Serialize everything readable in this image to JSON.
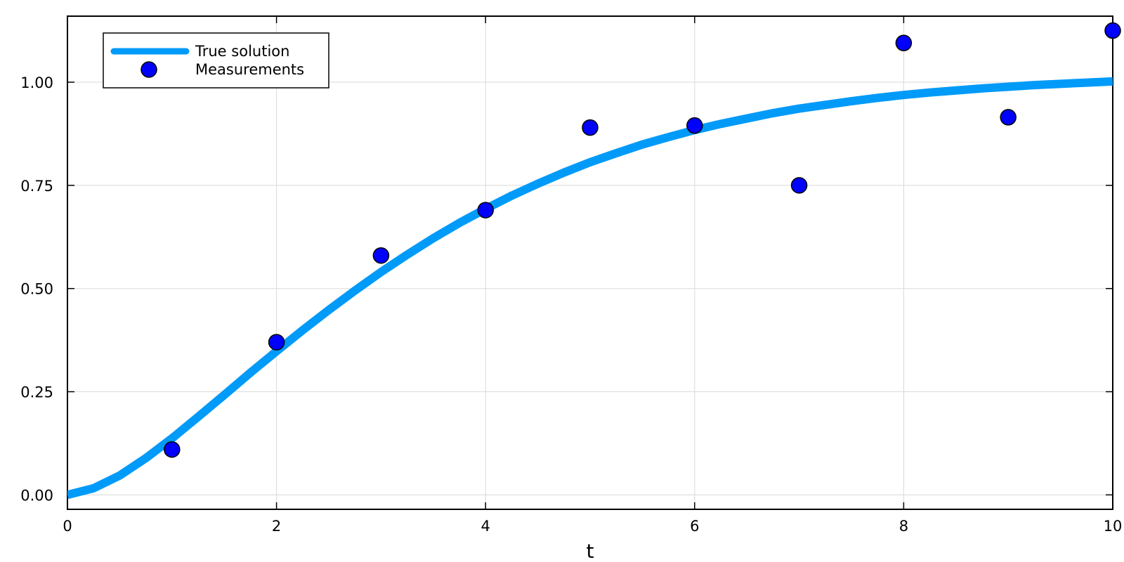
{
  "chart_data": {
    "type": "line",
    "title": "",
    "xlabel": "t",
    "ylabel": "",
    "xlim": [
      0,
      10
    ],
    "ylim": [
      -0.035,
      1.16
    ],
    "x_ticks": [
      0,
      2,
      4,
      6,
      8,
      10
    ],
    "x_tick_labels": [
      "0",
      "2",
      "4",
      "6",
      "8",
      "10"
    ],
    "y_ticks": [
      0,
      0.25,
      0.5,
      0.75,
      1.0
    ],
    "y_tick_labels": [
      "0.00",
      "0.25",
      "0.50",
      "0.75",
      "1.00"
    ],
    "grid": true,
    "legend": {
      "placement": "top-left",
      "entries": [
        "True solution",
        "Measurements"
      ]
    },
    "series": [
      {
        "name": "True solution",
        "kind": "line",
        "color": "#009af9",
        "x": [
          0,
          0.25,
          0.5,
          0.75,
          1,
          1.25,
          1.5,
          1.75,
          2,
          2.25,
          2.5,
          2.75,
          3,
          3.25,
          3.5,
          3.75,
          4,
          4.25,
          4.5,
          4.75,
          5,
          5.25,
          5.5,
          5.75,
          6,
          6.25,
          6.5,
          6.75,
          7,
          7.25,
          7.5,
          7.75,
          8,
          8.25,
          8.5,
          8.75,
          9,
          9.25,
          9.5,
          9.75,
          10
        ],
        "y": [
          0.0,
          0.016,
          0.047,
          0.089,
          0.137,
          0.189,
          0.242,
          0.296,
          0.348,
          0.399,
          0.448,
          0.495,
          0.54,
          0.582,
          0.622,
          0.659,
          0.693,
          0.725,
          0.754,
          0.781,
          0.806,
          0.828,
          0.849,
          0.867,
          0.884,
          0.899,
          0.912,
          0.925,
          0.936,
          0.945,
          0.954,
          0.962,
          0.969,
          0.975,
          0.98,
          0.985,
          0.989,
          0.993,
          0.996,
          0.999,
          1.002
        ]
      },
      {
        "name": "Measurements",
        "kind": "scatter",
        "color": "#0000ff",
        "x": [
          1,
          2,
          3,
          4,
          5,
          6,
          7,
          8,
          9,
          10
        ],
        "y": [
          0.11,
          0.37,
          0.58,
          0.69,
          0.89,
          0.895,
          0.75,
          1.095,
          0.915,
          1.125
        ]
      }
    ]
  }
}
